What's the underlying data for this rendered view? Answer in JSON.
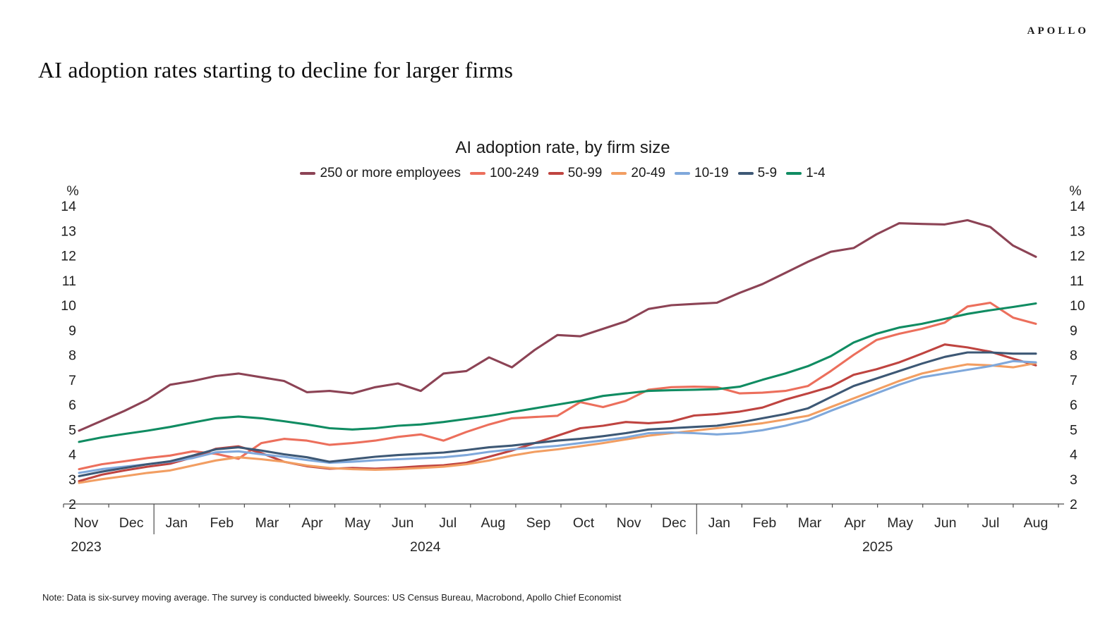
{
  "page": {
    "logo": "APOLLO",
    "title": "AI adoption rates starting to decline for larger firms",
    "note": "Note: Data is six-survey moving average. The survey is conducted biweekly. Sources: US Census Bureau, Macrobond, Apollo Chief Economist"
  },
  "chart_data": {
    "type": "line",
    "title": "AI adoption rate, by firm size",
    "y_unit": "%",
    "y_min": 2,
    "y_max": 14,
    "y_ticks": [
      2,
      3,
      4,
      5,
      6,
      7,
      8,
      9,
      10,
      11,
      12,
      13,
      14
    ],
    "grid": false,
    "legend_position": "top-center",
    "x_months": [
      "Nov",
      "Dec",
      "Jan",
      "Feb",
      "Mar",
      "Apr",
      "May",
      "Jun",
      "Jul",
      "Aug",
      "Sep",
      "Oct",
      "Nov",
      "Dec",
      "Jan",
      "Feb",
      "Mar",
      "Apr",
      "May",
      "Jun",
      "Jul",
      "Aug"
    ],
    "x_years": [
      {
        "label": "2023",
        "month_pos": 0.5
      },
      {
        "label": "2024",
        "month_pos": 8.0
      },
      {
        "label": "2025",
        "month_pos": 18.0
      }
    ],
    "x_note": "semi-monthly points from mid-Nov 2023 to early Aug 2025",
    "series": [
      {
        "name": "250 or more employees",
        "color": "#8c4355",
        "values": [
          4.95,
          5.35,
          5.75,
          6.2,
          6.8,
          6.95,
          7.15,
          7.25,
          7.1,
          6.95,
          6.5,
          6.55,
          6.45,
          6.7,
          6.85,
          6.55,
          7.25,
          7.35,
          7.9,
          7.5,
          8.2,
          8.8,
          8.75,
          9.05,
          9.35,
          9.85,
          10.0,
          10.05,
          10.1,
          10.5,
          10.85,
          11.3,
          11.75,
          12.15,
          12.3,
          12.85,
          13.3,
          13.27,
          13.25,
          13.42,
          13.15,
          12.4,
          11.95
        ]
      },
      {
        "name": "100-249",
        "color": "#ec6f5c",
        "values": [
          3.4,
          3.6,
          3.72,
          3.85,
          3.95,
          4.12,
          4.02,
          3.82,
          4.45,
          4.62,
          4.55,
          4.38,
          4.45,
          4.55,
          4.7,
          4.8,
          4.55,
          4.9,
          5.2,
          5.45,
          5.5,
          5.55,
          6.1,
          5.9,
          6.15,
          6.6,
          6.7,
          6.72,
          6.7,
          6.45,
          6.48,
          6.55,
          6.75,
          7.35,
          8.0,
          8.6,
          8.85,
          9.05,
          9.3,
          9.95,
          10.1,
          9.5,
          9.25
        ]
      },
      {
        "name": "50-99",
        "color": "#bf4440",
        "values": [
          2.92,
          3.18,
          3.35,
          3.5,
          3.62,
          3.88,
          4.22,
          4.32,
          4.05,
          3.7,
          3.52,
          3.42,
          3.45,
          3.42,
          3.46,
          3.52,
          3.56,
          3.66,
          3.9,
          4.15,
          4.45,
          4.75,
          5.05,
          5.15,
          5.3,
          5.25,
          5.32,
          5.56,
          5.62,
          5.72,
          5.88,
          6.2,
          6.45,
          6.72,
          7.2,
          7.42,
          7.7,
          8.05,
          8.42,
          8.3,
          8.13,
          7.85,
          7.58
        ]
      },
      {
        "name": "20-49",
        "color": "#f29e62",
        "values": [
          2.85,
          3.0,
          3.12,
          3.25,
          3.35,
          3.55,
          3.75,
          3.88,
          3.8,
          3.7,
          3.55,
          3.45,
          3.4,
          3.38,
          3.4,
          3.45,
          3.5,
          3.6,
          3.75,
          3.95,
          4.1,
          4.2,
          4.32,
          4.45,
          4.6,
          4.75,
          4.85,
          4.95,
          5.05,
          5.15,
          5.25,
          5.4,
          5.55,
          5.9,
          6.25,
          6.6,
          6.95,
          7.25,
          7.45,
          7.62,
          7.58,
          7.5,
          7.67
        ]
      },
      {
        "name": "10-19",
        "color": "#7fa8db",
        "values": [
          3.25,
          3.4,
          3.5,
          3.6,
          3.7,
          3.85,
          4.08,
          4.12,
          4.0,
          3.9,
          3.77,
          3.66,
          3.7,
          3.76,
          3.8,
          3.84,
          3.88,
          3.97,
          4.1,
          4.2,
          4.27,
          4.34,
          4.45,
          4.56,
          4.68,
          4.85,
          4.88,
          4.85,
          4.8,
          4.85,
          4.97,
          5.15,
          5.38,
          5.75,
          6.1,
          6.45,
          6.8,
          7.1,
          7.25,
          7.4,
          7.55,
          7.75,
          7.7
        ]
      },
      {
        "name": "5-9",
        "color": "#3d5875",
        "values": [
          3.12,
          3.3,
          3.45,
          3.6,
          3.72,
          3.95,
          4.2,
          4.28,
          4.15,
          4.0,
          3.88,
          3.7,
          3.8,
          3.9,
          3.97,
          4.02,
          4.07,
          4.17,
          4.28,
          4.35,
          4.45,
          4.55,
          4.62,
          4.73,
          4.85,
          5.0,
          5.05,
          5.1,
          5.15,
          5.28,
          5.45,
          5.62,
          5.85,
          6.3,
          6.75,
          7.05,
          7.35,
          7.65,
          7.92,
          8.1,
          8.1,
          8.05,
          8.05
        ]
      },
      {
        "name": "1-4",
        "color": "#108c62",
        "values": [
          4.5,
          4.68,
          4.82,
          4.95,
          5.1,
          5.28,
          5.45,
          5.52,
          5.45,
          5.33,
          5.2,
          5.05,
          5.0,
          5.05,
          5.15,
          5.2,
          5.3,
          5.42,
          5.55,
          5.7,
          5.85,
          6.0,
          6.15,
          6.35,
          6.45,
          6.55,
          6.58,
          6.6,
          6.62,
          6.72,
          7.0,
          7.25,
          7.55,
          7.95,
          8.5,
          8.85,
          9.1,
          9.25,
          9.45,
          9.65,
          9.8,
          9.93,
          10.07
        ]
      }
    ]
  }
}
